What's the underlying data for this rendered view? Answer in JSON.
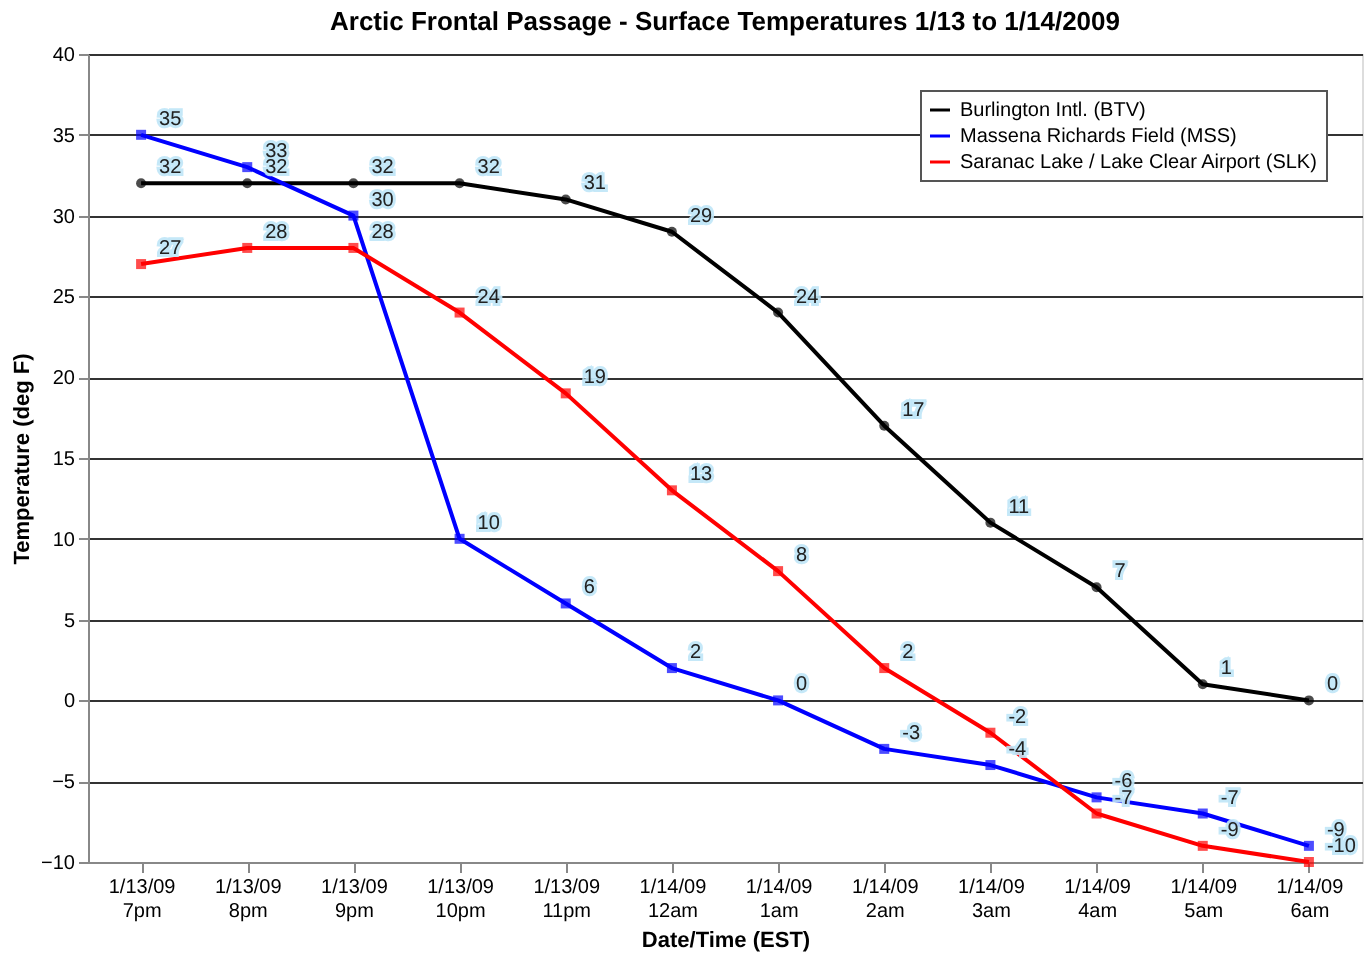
{
  "chart_data": {
    "type": "line",
    "title": "Arctic Frontal Passage - Surface Temperatures 1/13 to 1/14/2009",
    "xlabel": "Date/Time (EST)",
    "ylabel": "Temperature (deg F)",
    "categories": [
      "1/13/09\n7pm",
      "1/13/09\n8pm",
      "1/13/09\n9pm",
      "1/13/09\n10pm",
      "1/13/09\n11pm",
      "1/14/09\n12am",
      "1/14/09\n1am",
      "1/14/09\n2am",
      "1/14/09\n3am",
      "1/14/09\n4am",
      "1/14/09\n5am",
      "1/14/09\n6am"
    ],
    "series": [
      {
        "name": "Burlington Intl. (BTV)",
        "color": "#000000",
        "marker": "circle",
        "values": [
          32,
          32,
          32,
          32,
          31,
          29,
          24,
          17,
          11,
          7,
          1,
          0
        ]
      },
      {
        "name": "Massena Richards Field (MSS)",
        "color": "#0000ff",
        "marker": "square",
        "values": [
          35,
          33,
          30,
          10,
          6,
          2,
          0,
          -3,
          -4,
          -6,
          -7,
          -9
        ]
      },
      {
        "name": "Saranac Lake / Lake Clear Airport (SLK)",
        "color": "#ff0000",
        "marker": "square",
        "values": [
          27,
          28,
          28,
          24,
          19,
          13,
          8,
          2,
          -2,
          -7,
          -9,
          -10
        ]
      }
    ],
    "ylim": [
      -10,
      40
    ],
    "yticks": [
      -10,
      -5,
      0,
      5,
      10,
      15,
      20,
      25,
      30,
      35,
      40
    ],
    "grid": "y",
    "legend": "top right",
    "data_labels": true,
    "line_style": "solid"
  }
}
